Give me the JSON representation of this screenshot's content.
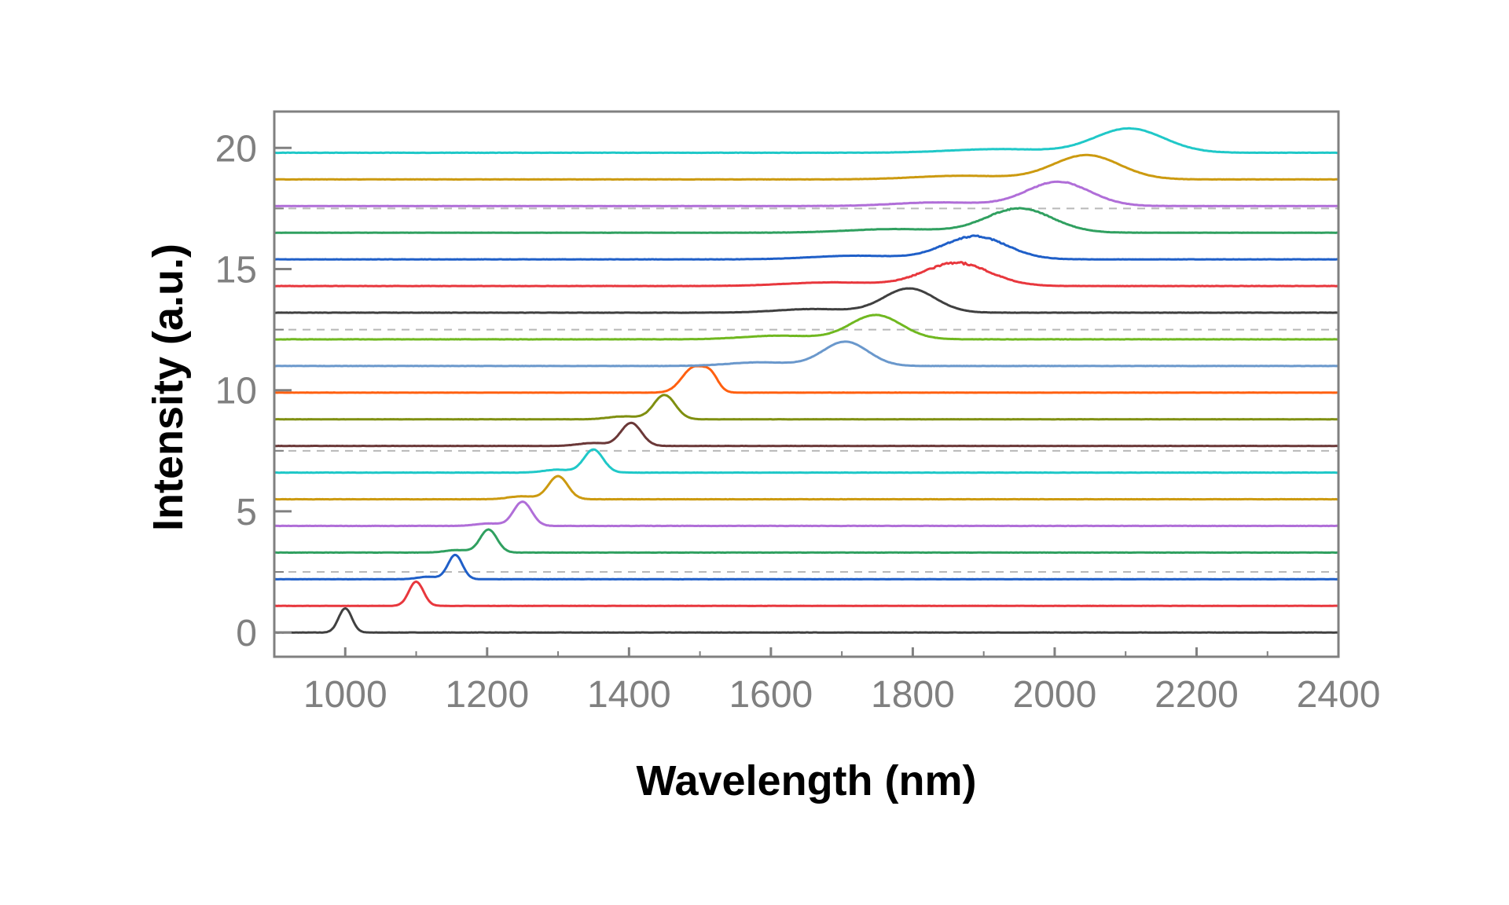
{
  "chart_data": {
    "type": "line",
    "title": "",
    "xlabel": "Wavelength (nm)",
    "ylabel": "Intensity (a.u.)",
    "xlim": [
      900,
      2400
    ],
    "ylim": [
      -1,
      21.5
    ],
    "x_ticks": [
      1000,
      1200,
      1400,
      1600,
      1800,
      2000,
      2200,
      2400
    ],
    "x_tick_labels": [
      "1000",
      "1200",
      "1400",
      "1600",
      "1800",
      "2000",
      "2200",
      "2400"
    ],
    "y_ticks": [
      0,
      5,
      10,
      15,
      20
    ],
    "y_tick_labels": [
      "0",
      "5",
      "10",
      "15",
      "20"
    ],
    "grid": "dashed horizontal lines at y = 2.5, 7.5, 12.5, 17.5",
    "gridlines_y": [
      2.5,
      7.5,
      12.5,
      17.5
    ],
    "legend": "none",
    "series": [
      {
        "color": "#404040",
        "baseline": 0.0,
        "peak_x": 1000,
        "peak_height": 1.0,
        "fwhm": 22,
        "noise": 0.0,
        "shoulder": 0.0,
        "side_bump": 0.0
      },
      {
        "color": "#e8373d",
        "baseline": 1.1,
        "peak_x": 1100,
        "peak_height": 1.0,
        "fwhm": 24,
        "noise": 0.0,
        "shoulder": 0.0,
        "side_bump": 0.0
      },
      {
        "color": "#1f5fc8",
        "baseline": 2.2,
        "peak_x": 1155,
        "peak_height": 1.0,
        "fwhm": 24,
        "noise": 0.0,
        "shoulder": 0.1,
        "side_bump": 0.0
      },
      {
        "color": "#30a060",
        "baseline": 3.3,
        "peak_x": 1202,
        "peak_height": 0.95,
        "fwhm": 28,
        "noise": 0.0,
        "shoulder": 0.1,
        "side_bump": 0.0
      },
      {
        "color": "#b06ed8",
        "baseline": 4.4,
        "peak_x": 1250,
        "peak_height": 1.0,
        "fwhm": 30,
        "noise": 0.0,
        "shoulder": 0.1,
        "side_bump": 0.0
      },
      {
        "color": "#cc9a10",
        "baseline": 5.5,
        "peak_x": 1300,
        "peak_height": 0.95,
        "fwhm": 32,
        "noise": 0.0,
        "shoulder": 0.12,
        "side_bump": 0.0
      },
      {
        "color": "#20c8c8",
        "baseline": 6.6,
        "peak_x": 1350,
        "peak_height": 0.95,
        "fwhm": 32,
        "noise": 0.0,
        "shoulder": 0.12,
        "side_bump": 0.0
      },
      {
        "color": "#6b3838",
        "baseline": 7.7,
        "peak_x": 1403,
        "peak_height": 0.95,
        "fwhm": 34,
        "noise": 0.0,
        "shoulder": 0.12,
        "side_bump": 0.0
      },
      {
        "color": "#7f8f10",
        "baseline": 8.8,
        "peak_x": 1450,
        "peak_height": 1.0,
        "fwhm": 36,
        "noise": 0.0,
        "shoulder": 0.12,
        "side_bump": 0.0
      },
      {
        "color": "#ff6010",
        "baseline": 9.9,
        "peak_x": 1492,
        "peak_height": 1.05,
        "fwhm": 40,
        "noise": 0.0,
        "shoulder": 0.0,
        "side_bump": 0.5
      },
      {
        "color": "#6a98cc",
        "baseline": 11.0,
        "peak_x": 1705,
        "peak_height": 1.0,
        "fwhm": 75,
        "noise": 0.0,
        "shoulder": 0.15,
        "side_bump": 0.0
      },
      {
        "color": "#70b820",
        "baseline": 12.1,
        "peak_x": 1748,
        "peak_height": 1.0,
        "fwhm": 85,
        "noise": 0.0,
        "shoulder": 0.15,
        "side_bump": 0.0
      },
      {
        "color": "#404040",
        "baseline": 13.2,
        "peak_x": 1795,
        "peak_height": 1.0,
        "fwhm": 85,
        "noise": 0.0,
        "shoulder": 0.15,
        "side_bump": 0.0
      },
      {
        "color": "#e8373d",
        "baseline": 14.3,
        "peak_x": 1862,
        "peak_height": 0.95,
        "fwhm": 110,
        "noise": 0.08,
        "shoulder": 0.15,
        "side_bump": 0.0
      },
      {
        "color": "#1f5fc8",
        "baseline": 15.4,
        "peak_x": 1888,
        "peak_height": 0.95,
        "fwhm": 105,
        "noise": 0.06,
        "shoulder": 0.15,
        "side_bump": 0.0
      },
      {
        "color": "#30a060",
        "baseline": 16.5,
        "peak_x": 1950,
        "peak_height": 1.0,
        "fwhm": 110,
        "noise": 0.04,
        "shoulder": 0.15,
        "side_bump": 0.0
      },
      {
        "color": "#b06ed8",
        "baseline": 17.6,
        "peak_x": 2005,
        "peak_height": 1.0,
        "fwhm": 105,
        "noise": 0.03,
        "shoulder": 0.15,
        "side_bump": 0.0
      },
      {
        "color": "#cc9a10",
        "baseline": 18.7,
        "peak_x": 2045,
        "peak_height": 1.0,
        "fwhm": 110,
        "noise": 0.0,
        "shoulder": 0.15,
        "side_bump": 0.0
      },
      {
        "color": "#20c8c8",
        "baseline": 19.8,
        "peak_x": 2105,
        "peak_height": 1.0,
        "fwhm": 115,
        "noise": 0.0,
        "shoulder": 0.15,
        "side_bump": 0.0
      }
    ],
    "axis_color": "#808080",
    "gridline_color": "#b8b8b8"
  }
}
